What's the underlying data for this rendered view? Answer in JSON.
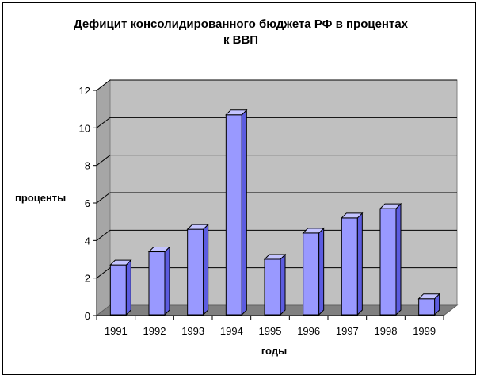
{
  "chart_data": {
    "type": "bar",
    "title_lines": [
      "Дефицит   консолидированного бюджета  РФ в процентах",
      "к ВВП"
    ],
    "xlabel": "годы",
    "ylabel": "проценты",
    "categories": [
      "1991",
      "1992",
      "1993",
      "1994",
      "1995",
      "1996",
      "1997",
      "1998",
      "1999"
    ],
    "values": [
      2.7,
      3.4,
      4.6,
      10.7,
      3.0,
      4.4,
      5.2,
      5.7,
      0.9
    ],
    "ylim": [
      0,
      12
    ],
    "yticks": [
      "0",
      "2",
      "4",
      "6",
      "8",
      "10",
      "12"
    ],
    "grid": true,
    "legend": "none",
    "colors": {
      "bar_front": "#9999ff",
      "bar_side": "#5c5ce0",
      "bar_top": "#c4c4ff",
      "back_wall": "#c0c0c0",
      "side_wall": "#a6a6a6",
      "floor": "#808080",
      "grid": "#000000"
    }
  }
}
